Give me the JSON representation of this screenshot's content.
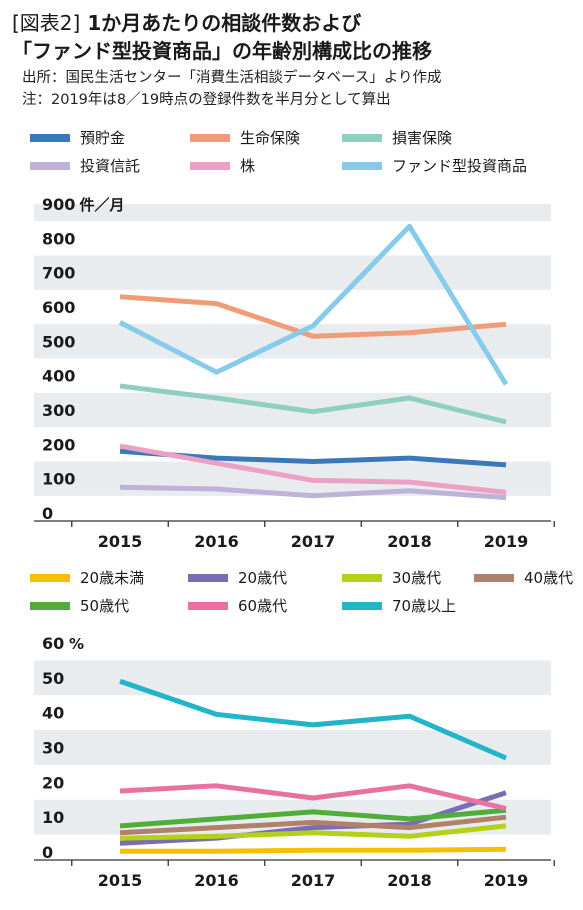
{
  "header": {
    "tag": "[図表2]",
    "title_line1": "1か月あたりの相談件数および",
    "title_line2": "「ファンド型投資商品」の年齢別構成比の推移",
    "source": "出所：国民生活センター「消費生活相談データベース」より作成",
    "note": "注：2019年は8／19時点の登録件数を半月分として算出"
  },
  "chart_data": [
    {
      "type": "line",
      "unit_label": "件／月",
      "x": [
        "2015",
        "2016",
        "2017",
        "2018",
        "2019"
      ],
      "ylim": [
        0,
        900
      ],
      "yticks": [
        0,
        100,
        200,
        300,
        400,
        500,
        600,
        700,
        800,
        900
      ],
      "grid": "alternating-bands",
      "legend_position": "top",
      "series": [
        {
          "name": "預貯金",
          "color": "#3c78b8",
          "values": [
            180,
            160,
            150,
            160,
            140
          ]
        },
        {
          "name": "生命保険",
          "color": "#ef9c78",
          "values": [
            630,
            610,
            515,
            525,
            550
          ]
        },
        {
          "name": "損害保険",
          "color": "#8fcfbf",
          "values": [
            370,
            335,
            295,
            335,
            265
          ]
        },
        {
          "name": "投資信託",
          "color": "#beb2d8",
          "values": [
            75,
            70,
            50,
            65,
            45
          ]
        },
        {
          "name": "株",
          "color": "#eca0c5",
          "values": [
            195,
            145,
            95,
            90,
            60
          ]
        },
        {
          "name": "ファンド型投資商品",
          "color": "#86cbeb",
          "values": [
            555,
            410,
            545,
            835,
            375
          ]
        }
      ]
    },
    {
      "type": "line",
      "unit_label": "%",
      "x": [
        "2015",
        "2016",
        "2017",
        "2018",
        "2019"
      ],
      "ylim": [
        0,
        60
      ],
      "yticks": [
        0,
        10,
        20,
        30,
        40,
        50,
        60
      ],
      "grid": "alternating-bands",
      "legend_position": "top",
      "series": [
        {
          "name": "20歳未満",
          "color": "#f5c000",
          "values": [
            0.2,
            0.2,
            0.5,
            0.5,
            0.8
          ]
        },
        {
          "name": "20歳代",
          "color": "#7b6db4",
          "values": [
            2.5,
            4,
            7,
            8,
            17
          ]
        },
        {
          "name": "30歳代",
          "color": "#b5cf1b",
          "values": [
            4,
            4.5,
            5.5,
            4.5,
            7.5
          ]
        },
        {
          "name": "40歳代",
          "color": "#b0806a",
          "values": [
            5.5,
            7,
            8.5,
            7,
            10
          ]
        },
        {
          "name": "50歳代",
          "color": "#4fae3a",
          "values": [
            7.5,
            9.5,
            11.5,
            9.5,
            12
          ]
        },
        {
          "name": "60歳代",
          "color": "#e8719f",
          "values": [
            17.5,
            19,
            15.5,
            19,
            12.5
          ]
        },
        {
          "name": "70歳以上",
          "color": "#22b4c9",
          "values": [
            49,
            39.5,
            36.5,
            39,
            27
          ]
        }
      ]
    }
  ]
}
